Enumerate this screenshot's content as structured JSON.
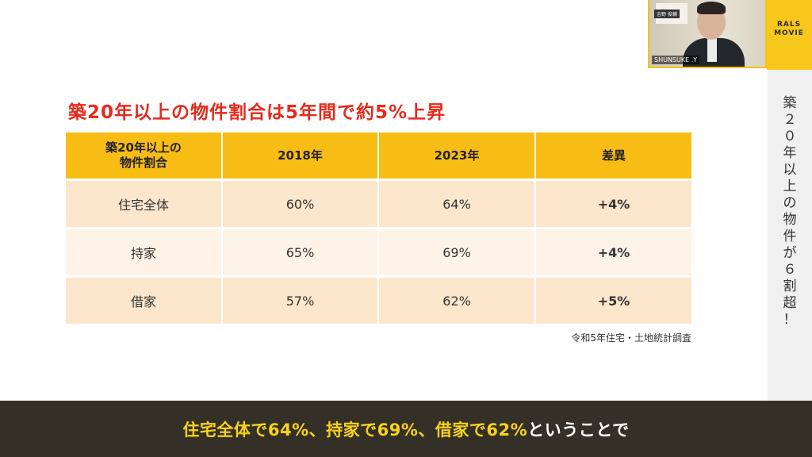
{
  "slide": {
    "title": "築20年以上の物件割合は5年間で約5%上昇",
    "table": {
      "headers": [
        "築20年以上の\n物件割合",
        "2018年",
        "2023年",
        "差異"
      ],
      "header_line1": "築20年以上の",
      "header_line2": "物件割合",
      "rows": [
        {
          "label": "住宅全体",
          "y2018": "60%",
          "y2023": "64%",
          "diff": "+4%"
        },
        {
          "label": "持家",
          "y2018": "65%",
          "y2023": "69%",
          "diff": "+4%"
        },
        {
          "label": "借家",
          "y2018": "57%",
          "y2023": "62%",
          "diff": "+5%"
        }
      ]
    },
    "source": "令和5年住宅・土地統計調査"
  },
  "sidebar": {
    "vertical_title": "築２０年以上の物件が６割超！"
  },
  "video": {
    "speaker_label": "SHUNSUKE .Y",
    "nameplate": "吉野 俊輔"
  },
  "logo": {
    "line1": "RALS",
    "line2": "MOVIE"
  },
  "caption": {
    "highlight": "住宅全体で64%、持家で69%、借家で62%",
    "rest": "ということで"
  },
  "colors": {
    "title_red": "#e52b1c",
    "header_yellow": "#f8bd15",
    "row_peach": "#fde7cc",
    "row_light": "#fef3e6",
    "caption_bar": "#343028",
    "caption_highlight": "#f8d21b"
  }
}
